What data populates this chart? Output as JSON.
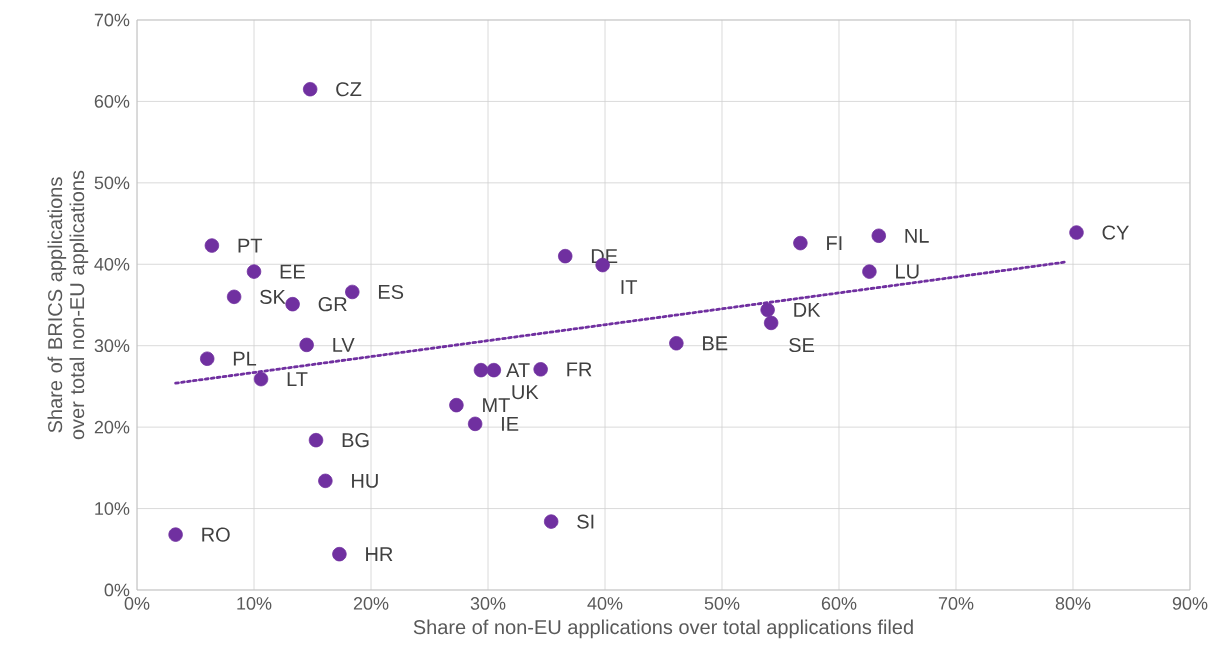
{
  "chart_data": {
    "type": "scatter",
    "xlabel": "Share of non-EU applications over total applications filed",
    "ylabel": "Share of BRICS applications over total non-EU applications",
    "xlim": [
      0,
      90
    ],
    "ylim": [
      0,
      70
    ],
    "xticks": [
      {
        "value": 0,
        "label": "0%"
      },
      {
        "value": 10,
        "label": "10%"
      },
      {
        "value": 20,
        "label": "20%"
      },
      {
        "value": 30,
        "label": "30%"
      },
      {
        "value": 40,
        "label": "40%"
      },
      {
        "value": 50,
        "label": "50%"
      },
      {
        "value": 60,
        "label": "60%"
      },
      {
        "value": 70,
        "label": "70%"
      },
      {
        "value": 80,
        "label": "80%"
      },
      {
        "value": 90,
        "label": "90%"
      }
    ],
    "yticks": [
      {
        "value": 0,
        "label": "0%"
      },
      {
        "value": 10,
        "label": "10%"
      },
      {
        "value": 20,
        "label": "20%"
      },
      {
        "value": 30,
        "label": "30%"
      },
      {
        "value": 40,
        "label": "40%"
      },
      {
        "value": 50,
        "label": "50%"
      },
      {
        "value": 60,
        "label": "60%"
      },
      {
        "value": 70,
        "label": "70%"
      }
    ],
    "grid": true,
    "series": [
      {
        "color": "#7030a0",
        "marker": "circle",
        "x": [
          14.8,
          6.4,
          10.0,
          8.3,
          13.3,
          18.4,
          14.5,
          6.0,
          10.6,
          15.3,
          16.1,
          3.3,
          17.3,
          29.4,
          30.5,
          34.5,
          27.3,
          28.9,
          35.4,
          36.6,
          39.8,
          46.1,
          53.9,
          54.2,
          56.7,
          63.4,
          62.6,
          80.3
        ],
        "values": [
          61.5,
          42.3,
          39.1,
          36.0,
          35.1,
          36.6,
          30.1,
          28.4,
          25.9,
          18.4,
          13.4,
          6.8,
          4.4,
          27.0,
          27.0,
          27.1,
          22.7,
          20.4,
          8.4,
          41.0,
          39.9,
          30.3,
          34.4,
          32.8,
          42.6,
          43.5,
          39.1,
          43.9
        ]
      },
      {
        "type": "line",
        "color": "#7030a0",
        "line_style": "dotted",
        "marker": "none",
        "x": [
          3.3,
          79.5
        ],
        "values": [
          25.4,
          40.3
        ]
      }
    ],
    "annotations": [
      {
        "text": "CZ",
        "x": 14.8,
        "y": 61.5
      },
      {
        "text": "PT",
        "x": 6.4,
        "y": 42.3
      },
      {
        "text": "EE",
        "x": 10.0,
        "y": 39.1
      },
      {
        "text": "SK",
        "x": 8.3,
        "y": 36.0
      },
      {
        "text": "GR",
        "x": 13.3,
        "y": 35.1
      },
      {
        "text": "ES",
        "x": 18.4,
        "y": 36.6
      },
      {
        "text": "LV",
        "x": 14.5,
        "y": 30.1
      },
      {
        "text": "PL",
        "x": 6.0,
        "y": 28.4
      },
      {
        "text": "LT",
        "x": 10.6,
        "y": 25.9
      },
      {
        "text": "BG",
        "x": 15.3,
        "y": 18.4
      },
      {
        "text": "HU",
        "x": 16.1,
        "y": 13.4
      },
      {
        "text": "RO",
        "x": 3.3,
        "y": 6.8
      },
      {
        "text": "HR",
        "x": 17.3,
        "y": 4.4
      },
      {
        "text": "AT",
        "x": 29.4,
        "y": 27.0
      },
      {
        "text": "UK",
        "x": 30.5,
        "y": 27.0
      },
      {
        "text": "FR",
        "x": 34.5,
        "y": 27.1
      },
      {
        "text": "MT",
        "x": 27.3,
        "y": 22.7
      },
      {
        "text": "IE",
        "x": 28.9,
        "y": 20.4
      },
      {
        "text": "SI",
        "x": 35.4,
        "y": 8.4
      },
      {
        "text": "DE",
        "x": 36.6,
        "y": 41.0
      },
      {
        "text": "IT",
        "x": 39.8,
        "y": 39.9
      },
      {
        "text": "BE",
        "x": 46.1,
        "y": 30.3
      },
      {
        "text": "DK",
        "x": 53.9,
        "y": 34.4
      },
      {
        "text": "SE",
        "x": 54.2,
        "y": 32.8
      },
      {
        "text": "FI",
        "x": 56.7,
        "y": 42.6
      },
      {
        "text": "NL",
        "x": 63.4,
        "y": 43.5
      },
      {
        "text": "LU",
        "x": 62.6,
        "y": 39.1
      },
      {
        "text": "CY",
        "x": 80.3,
        "y": 43.9
      }
    ]
  }
}
